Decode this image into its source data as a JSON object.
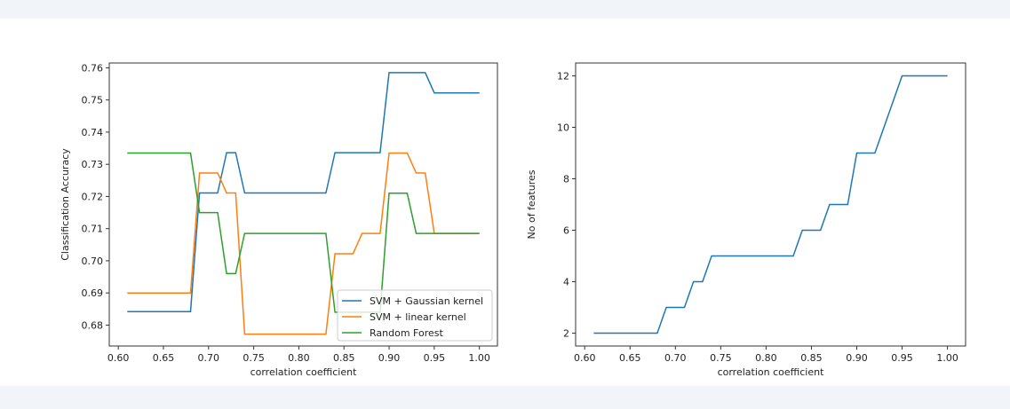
{
  "chart_data": [
    {
      "type": "line",
      "title": "",
      "xlabel": "correlation coefficient",
      "ylabel": "Classification Accuracy",
      "xlim": [
        0.59,
        1.02
      ],
      "ylim": [
        0.6735,
        0.7615
      ],
      "xticks": [
        "0.60",
        "0.65",
        "0.70",
        "0.75",
        "0.80",
        "0.85",
        "0.90",
        "0.95",
        "1.00"
      ],
      "xtick_values": [
        0.6,
        0.65,
        0.7,
        0.75,
        0.8,
        0.85,
        0.9,
        0.95,
        1.0
      ],
      "yticks": [
        "0.68",
        "0.69",
        "0.70",
        "0.71",
        "0.72",
        "0.73",
        "0.74",
        "0.75",
        "0.76"
      ],
      "ytick_values": [
        0.68,
        0.69,
        0.7,
        0.71,
        0.72,
        0.73,
        0.74,
        0.75,
        0.76
      ],
      "grid": false,
      "legend_position": "lower-right",
      "x": [
        0.61,
        0.62,
        0.63,
        0.64,
        0.65,
        0.66,
        0.67,
        0.68,
        0.69,
        0.7,
        0.71,
        0.72,
        0.73,
        0.74,
        0.75,
        0.76,
        0.77,
        0.78,
        0.79,
        0.8,
        0.81,
        0.82,
        0.83,
        0.84,
        0.85,
        0.86,
        0.87,
        0.88,
        0.89,
        0.9,
        0.91,
        0.92,
        0.93,
        0.94,
        0.95,
        0.96,
        0.97,
        0.98,
        0.99,
        1.0
      ],
      "series": [
        {
          "name": "SVM + Gaussian kernel",
          "color": "#1f77b4",
          "values": [
            0.6842,
            0.6842,
            0.6842,
            0.6842,
            0.6842,
            0.6842,
            0.6842,
            0.6842,
            0.7211,
            0.7211,
            0.7211,
            0.7336,
            0.7336,
            0.7211,
            0.7211,
            0.7211,
            0.7211,
            0.7211,
            0.7211,
            0.7211,
            0.7211,
            0.7211,
            0.7211,
            0.7336,
            0.7336,
            0.7336,
            0.7336,
            0.7336,
            0.7336,
            0.7585,
            0.7585,
            0.7585,
            0.7585,
            0.7585,
            0.7522,
            0.7522,
            0.7522,
            0.7522,
            0.7522,
            0.7522
          ]
        },
        {
          "name": "SVM + linear kernel",
          "color": "#ff7f0e",
          "values": [
            0.69,
            0.69,
            0.69,
            0.69,
            0.69,
            0.69,
            0.69,
            0.69,
            0.7273,
            0.7273,
            0.7273,
            0.7211,
            0.7211,
            0.6772,
            0.6772,
            0.6772,
            0.6772,
            0.6772,
            0.6772,
            0.6772,
            0.6772,
            0.6772,
            0.6772,
            0.7022,
            0.7022,
            0.7022,
            0.7085,
            0.7085,
            0.7085,
            0.7335,
            0.7335,
            0.7335,
            0.7273,
            0.7273,
            0.7085,
            0.7085,
            0.7085,
            0.7085,
            0.7085,
            0.7085
          ]
        },
        {
          "name": "Random Forest",
          "color": "#2ca02c",
          "values": [
            0.7335,
            0.7335,
            0.7335,
            0.7335,
            0.7335,
            0.7335,
            0.7335,
            0.7335,
            0.715,
            0.715,
            0.715,
            0.696,
            0.696,
            0.7085,
            0.7085,
            0.7085,
            0.7085,
            0.7085,
            0.7085,
            0.7085,
            0.7085,
            0.7085,
            0.7085,
            0.684,
            0.684,
            0.684,
            0.684,
            0.684,
            0.684,
            0.721,
            0.721,
            0.721,
            0.7085,
            0.7085,
            0.7085,
            0.7085,
            0.7085,
            0.7085,
            0.7085,
            0.7085
          ]
        }
      ]
    },
    {
      "type": "line",
      "title": "",
      "xlabel": "correlation coefficient",
      "ylabel": "No of features",
      "xlim": [
        0.59,
        1.02
      ],
      "ylim": [
        1.5,
        12.5
      ],
      "xticks": [
        "0.60",
        "0.65",
        "0.70",
        "0.75",
        "0.80",
        "0.85",
        "0.90",
        "0.95",
        "1.00"
      ],
      "xtick_values": [
        0.6,
        0.65,
        0.7,
        0.75,
        0.8,
        0.85,
        0.9,
        0.95,
        1.0
      ],
      "yticks": [
        "2",
        "4",
        "6",
        "8",
        "10",
        "12"
      ],
      "ytick_values": [
        2,
        4,
        6,
        8,
        10,
        12
      ],
      "grid": false,
      "x": [
        0.61,
        0.62,
        0.63,
        0.64,
        0.65,
        0.66,
        0.67,
        0.68,
        0.69,
        0.7,
        0.71,
        0.72,
        0.73,
        0.74,
        0.75,
        0.76,
        0.77,
        0.78,
        0.79,
        0.8,
        0.81,
        0.82,
        0.83,
        0.84,
        0.85,
        0.86,
        0.87,
        0.88,
        0.89,
        0.9,
        0.91,
        0.92,
        0.93,
        0.94,
        0.95,
        0.96,
        0.97,
        0.98,
        0.99,
        1.0
      ],
      "series": [
        {
          "name": "No of features",
          "color": "#1f77b4",
          "values": [
            2,
            2,
            2,
            2,
            2,
            2,
            2,
            2,
            3,
            3,
            3,
            4,
            4,
            5,
            5,
            5,
            5,
            5,
            5,
            5,
            5,
            5,
            5,
            6,
            6,
            6,
            7,
            7,
            7,
            9,
            9,
            9,
            10,
            11,
            12,
            12,
            12,
            12,
            12,
            12
          ]
        }
      ]
    }
  ]
}
